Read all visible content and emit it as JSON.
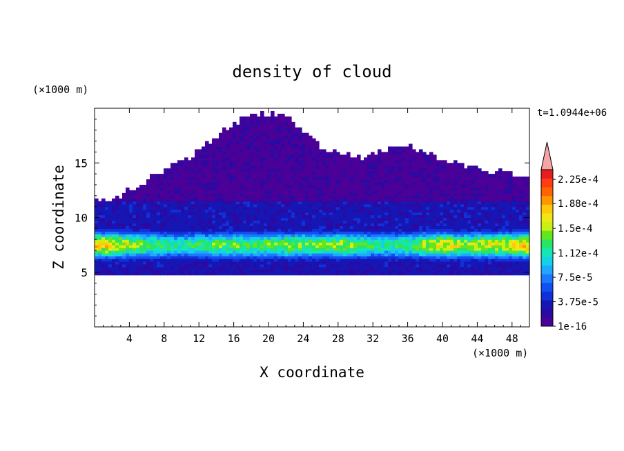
{
  "chart_data": {
    "type": "heatmap",
    "title": "density of cloud",
    "xlabel": "X coordinate",
    "ylabel": "Z coordinate",
    "x_unit": "(×1000 m)",
    "y_unit": "(×1000 m)",
    "time_label": "t=1.0944e+06",
    "xlim": [
      0,
      50
    ],
    "ylim": [
      0,
      20
    ],
    "x_ticks": [
      4,
      8,
      12,
      16,
      20,
      24,
      28,
      32,
      36,
      40,
      44,
      48
    ],
    "y_ticks": [
      5,
      10,
      15
    ],
    "colorbar": {
      "labels": [
        "1e-16",
        "3.75e-5",
        "7.5e-5",
        "1.12e-4",
        "1.5e-4",
        "1.88e-4",
        "2.25e-4"
      ],
      "label_values": [
        0,
        3.75e-05,
        7.5e-05,
        0.000112,
        0.00015,
        0.000188,
        0.000225
      ],
      "vmin": 0,
      "vmax": 0.00024,
      "extend": "max",
      "colors": [
        "#4b0097",
        "#2a0aa2",
        "#1616b4",
        "#1030d8",
        "#1050f0",
        "#1e78ff",
        "#1ea8ff",
        "#14d2e6",
        "#14e6b4",
        "#28e664",
        "#64e61e",
        "#c8f014",
        "#f0e614",
        "#ffc80a",
        "#ff9600",
        "#ff6400",
        "#ff3c14",
        "#e61e1e"
      ],
      "over_color": "#f5a5a5"
    },
    "profile": {
      "cloud_base_z": 5,
      "core_z": 7.5,
      "core_halfwidth_z": 1.2,
      "peak_density_range": [
        0.00016,
        0.00019
      ],
      "mid_layer_top_z": 11.5,
      "anvil_top_z": [
        {
          "x": 0,
          "z": 11.5
        },
        {
          "x": 3,
          "z": 12.0
        },
        {
          "x": 8,
          "z": 14.5
        },
        {
          "x": 10,
          "z": 15.0
        },
        {
          "x": 12,
          "z": 16.0
        },
        {
          "x": 14,
          "z": 17.5
        },
        {
          "x": 16,
          "z": 18.5
        },
        {
          "x": 18,
          "z": 19.5
        },
        {
          "x": 22,
          "z": 19.5
        },
        {
          "x": 24,
          "z": 18.0
        },
        {
          "x": 26,
          "z": 16.5
        },
        {
          "x": 30,
          "z": 15.5
        },
        {
          "x": 36,
          "z": 16.5
        },
        {
          "x": 40,
          "z": 15.5
        },
        {
          "x": 44,
          "z": 14.5
        },
        {
          "x": 48,
          "z": 14.0
        },
        {
          "x": 50,
          "z": 13.5
        }
      ],
      "core_strength": [
        {
          "x": 0,
          "v": 1.0
        },
        {
          "x": 2,
          "v": 0.9
        },
        {
          "x": 6,
          "v": 0.55
        },
        {
          "x": 10,
          "v": 0.3
        },
        {
          "x": 14,
          "v": 0.55
        },
        {
          "x": 18,
          "v": 0.45
        },
        {
          "x": 22,
          "v": 0.6
        },
        {
          "x": 26,
          "v": 0.55
        },
        {
          "x": 29,
          "v": 0.65
        },
        {
          "x": 33,
          "v": 0.35
        },
        {
          "x": 36,
          "v": 0.45
        },
        {
          "x": 40,
          "v": 0.9
        },
        {
          "x": 43,
          "v": 0.7
        },
        {
          "x": 47,
          "v": 0.85
        },
        {
          "x": 50,
          "v": 1.0
        }
      ]
    }
  }
}
